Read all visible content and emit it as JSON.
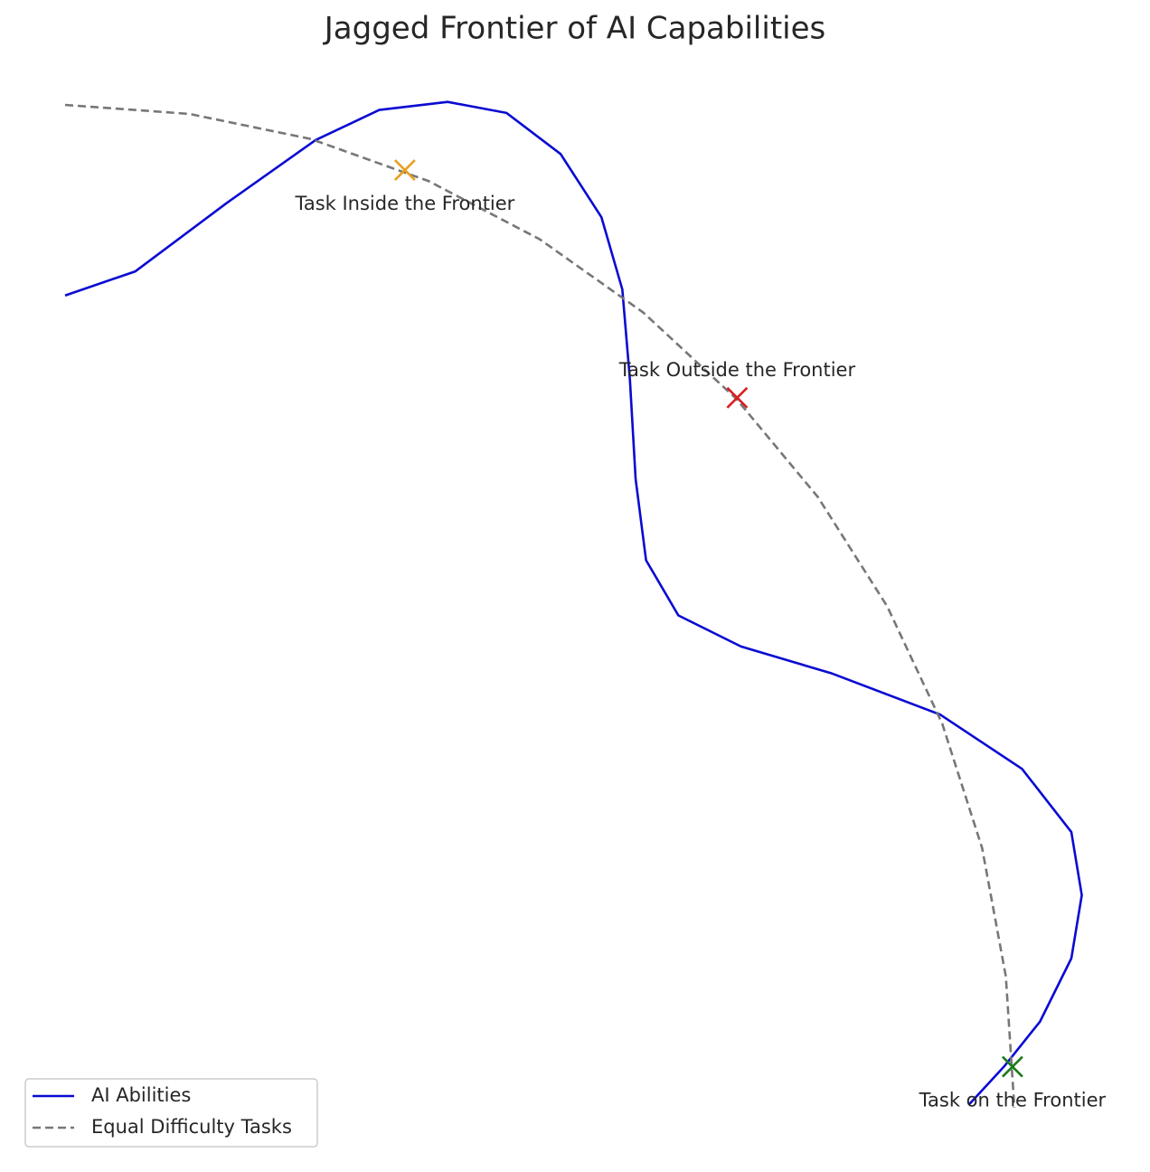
{
  "chart_data": {
    "type": "line",
    "title": "Jagged Frontier of AI Capabilities",
    "xlim": [
      0,
      1.1
    ],
    "ylim": [
      0,
      1.05
    ],
    "grid": false,
    "axes_visible": false,
    "legend": "lower left",
    "series": [
      {
        "name": "AI Abilities",
        "color": "#0a0ad2",
        "style": "solid",
        "x": [
          0,
          0.074,
          0.17,
          0.264,
          0.331,
          0.403,
          0.465,
          0.522,
          0.565,
          0.587,
          0.595,
          0.601,
          0.612,
          0.646,
          0.712,
          0.808,
          0.922,
          1.008,
          1.06,
          1.071,
          1.06,
          1.027,
          0.989,
          0.952
        ],
        "values": [
          0.81,
          0.834,
          0.902,
          0.965,
          0.995,
          1.003,
          0.992,
          0.951,
          0.888,
          0.816,
          0.726,
          0.627,
          0.546,
          0.491,
          0.46,
          0.433,
          0.392,
          0.338,
          0.275,
          0.212,
          0.149,
          0.086,
          0.041,
          0.003
        ]
      },
      {
        "name": "Equal Difficulty Tasks",
        "color": "#777777",
        "style": "dashed",
        "x": [
          0,
          0.131,
          0.259,
          0.383,
          0.5,
          0.609,
          0.707,
          0.793,
          0.866,
          0.924,
          0.966,
          0.991,
          1
        ],
        "values": [
          1,
          0.991,
          0.966,
          0.924,
          0.866,
          0.793,
          0.707,
          0.609,
          0.5,
          0.383,
          0.259,
          0.131,
          0
        ]
      }
    ],
    "points": [
      {
        "label": "Task Inside the Frontier",
        "x": 0.358,
        "y": 0.935,
        "color": "#e8a020",
        "label_side": "below"
      },
      {
        "label": "Task Outside the Frontier",
        "x": 0.708,
        "y": 0.708,
        "color": "#d62020",
        "label_side": "above"
      },
      {
        "label": "Task on the Frontier",
        "x": 0.998,
        "y": 0.041,
        "color": "#1a7a1a",
        "label_side": "below"
      }
    ]
  }
}
